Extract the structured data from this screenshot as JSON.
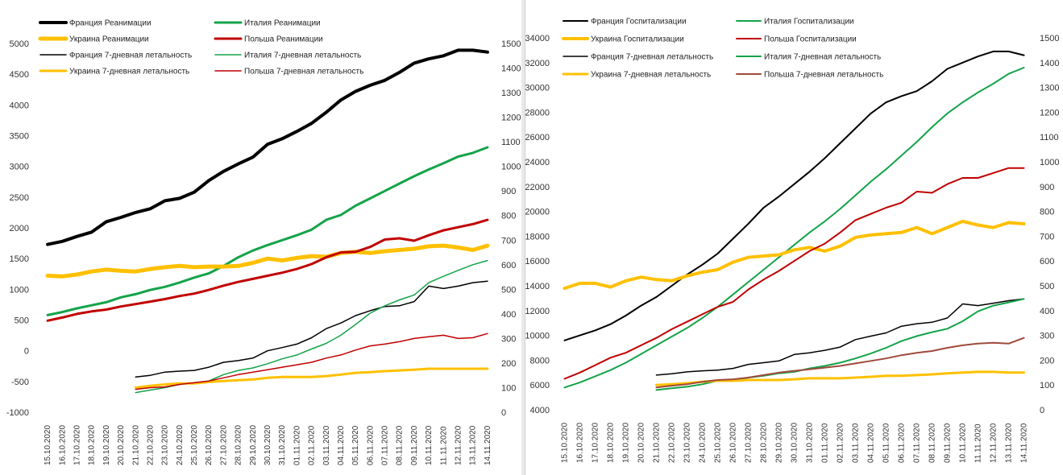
{
  "chart_data": [
    {
      "type": "line",
      "categories": [
        "15.10.2020",
        "16.10.2020",
        "17.10.2020",
        "18.10.2020",
        "19.10.2020",
        "20.10.2020",
        "21.10.2020",
        "22.10.2020",
        "23.10.2020",
        "24.10.2020",
        "25.10.2020",
        "26.10.2020",
        "27.10.2020",
        "28.10.2020",
        "29.10.2020",
        "30.10.2020",
        "31.10.2020",
        "01.11.2020",
        "02.11.2020",
        "03.11.2020",
        "04.11.2020",
        "05.11.2020",
        "06.11.2020",
        "07.11.2020",
        "08.11.2020",
        "09.11.2020",
        "10.11.2020",
        "11.11.2020",
        "12.11.2020",
        "13.11.2020",
        "14.11.2020"
      ],
      "y_left": {
        "min": -1000,
        "max": 5000,
        "step": 500,
        "ticks": [
          "-1000",
          "-500",
          "0",
          "500",
          "1000",
          "1500",
          "2000",
          "2500",
          "3000",
          "3500",
          "4000",
          "4500",
          "5000"
        ]
      },
      "y_right": {
        "min": 0,
        "max": 1500,
        "step": 100,
        "ticks": [
          "0",
          "100",
          "200",
          "300",
          "400",
          "500",
          "600",
          "700",
          "800",
          "900",
          "1000",
          "1100",
          "1200",
          "1300",
          "1400",
          "1500"
        ]
      },
      "grid": false,
      "legend": "top",
      "series": [
        {
          "name": "Франция Реанимации",
          "axis": "left",
          "color": "#000000",
          "width": 4,
          "values": [
            1730,
            1780,
            1860,
            1930,
            2100,
            2170,
            2250,
            2310,
            2440,
            2480,
            2580,
            2770,
            2920,
            3040,
            3150,
            3360,
            3450,
            3570,
            3700,
            3880,
            4080,
            4220,
            4320,
            4400,
            4530,
            4680,
            4750,
            4800,
            4890,
            4890,
            4860
          ]
        },
        {
          "name": "Италия Реанимации",
          "axis": "left",
          "color": "#14a349",
          "width": 3,
          "values": [
            580,
            630,
            690,
            740,
            790,
            870,
            920,
            990,
            1040,
            1110,
            1190,
            1260,
            1380,
            1520,
            1630,
            1720,
            1800,
            1880,
            1970,
            2130,
            2210,
            2360,
            2480,
            2600,
            2720,
            2840,
            2950,
            3050,
            3160,
            3220,
            3310
          ]
        },
        {
          "name": "Украина Реанимации",
          "axis": "left",
          "color": "#ffc000",
          "width": 5,
          "values": [
            1220,
            1210,
            1240,
            1290,
            1320,
            1300,
            1290,
            1330,
            1360,
            1380,
            1360,
            1370,
            1370,
            1380,
            1430,
            1500,
            1470,
            1510,
            1540,
            1530,
            1590,
            1610,
            1590,
            1620,
            1640,
            1660,
            1700,
            1710,
            1680,
            1640,
            1710
          ]
        },
        {
          "name": "Польша Реанимации",
          "axis": "left",
          "color": "#c00000",
          "width": 3,
          "values": [
            490,
            540,
            600,
            640,
            670,
            720,
            760,
            800,
            840,
            890,
            930,
            990,
            1060,
            1120,
            1170,
            1220,
            1270,
            1330,
            1410,
            1520,
            1600,
            1610,
            1690,
            1810,
            1830,
            1790,
            1880,
            1960,
            2010,
            2060,
            2130
          ]
        },
        {
          "name": "Франция 7-дневная летальность",
          "axis": "right",
          "color": "#000000",
          "width": 1.5,
          "values": [
            null,
            null,
            null,
            null,
            null,
            null,
            143,
            150,
            163,
            167,
            170,
            183,
            203,
            210,
            220,
            250,
            263,
            277,
            303,
            340,
            363,
            393,
            413,
            430,
            433,
            450,
            513,
            503,
            513,
            527,
            533
          ]
        },
        {
          "name": "Италия 7-дневная летальность",
          "axis": "right",
          "color": "#14a349",
          "width": 1.5,
          "values": [
            null,
            null,
            null,
            null,
            null,
            null,
            80,
            90,
            100,
            113,
            120,
            127,
            153,
            170,
            180,
            197,
            217,
            233,
            257,
            280,
            313,
            357,
            403,
            433,
            457,
            477,
            527,
            553,
            577,
            600,
            617
          ]
        },
        {
          "name": "Украина 7-дневная летальность",
          "axis": "right",
          "color": "#ffc000",
          "width": 3,
          "values": [
            null,
            null,
            null,
            null,
            null,
            null,
            100,
            107,
            113,
            117,
            117,
            123,
            127,
            130,
            133,
            140,
            143,
            143,
            143,
            147,
            153,
            160,
            163,
            167,
            170,
            173,
            177,
            177,
            177,
            177,
            177
          ]
        },
        {
          "name": "Польша 7-дневная летальность",
          "axis": "right",
          "color": "#c00000",
          "width": 1.5,
          "values": [
            null,
            null,
            null,
            null,
            null,
            null,
            93,
            100,
            103,
            113,
            120,
            127,
            140,
            153,
            163,
            173,
            183,
            193,
            203,
            220,
            233,
            253,
            270,
            277,
            287,
            300,
            307,
            313,
            300,
            303,
            320
          ]
        }
      ]
    },
    {
      "type": "line",
      "categories": [
        "15.10.2020",
        "16.10.2020",
        "17.10.2020",
        "18.10.2020",
        "19.10.2020",
        "20.10.2020",
        "21.10.2020",
        "22.10.2020",
        "23.10.2020",
        "24.10.2020",
        "25.10.2020",
        "26.10.2020",
        "27.10.2020",
        "28.10.2020",
        "29.10.2020",
        "30.10.2020",
        "31.10.2020",
        "01.11.2020",
        "02.11.2020",
        "03.11.2020",
        "04.11.2020",
        "05.11.2020",
        "06.11.2020",
        "07.11.2020",
        "08.11.2020",
        "09.11.2020",
        "10.11.2020",
        "11.11.2020",
        "12.11.2020",
        "13.11.2020",
        "14.11.2020"
      ],
      "y_left": {
        "min": 4000,
        "max": 34000,
        "step": 2000,
        "ticks": [
          "4000",
          "6000",
          "8000",
          "10000",
          "12000",
          "14000",
          "16000",
          "18000",
          "20000",
          "22000",
          "24000",
          "26000",
          "28000",
          "30000",
          "32000",
          "34000"
        ]
      },
      "y_right": {
        "min": 0,
        "max": 1500,
        "step": 100,
        "ticks": [
          "0",
          "100",
          "200",
          "300",
          "400",
          "500",
          "600",
          "700",
          "800",
          "900",
          "1000",
          "1100",
          "1200",
          "1300",
          "1400",
          "1500"
        ]
      },
      "grid": false,
      "legend": "top",
      "series": [
        {
          "name": "Франция Госпитализации",
          "axis": "left",
          "color": "#000000",
          "width": 2,
          "values": [
            9600,
            10000,
            10400,
            10900,
            11600,
            12400,
            13100,
            14000,
            14900,
            15700,
            16600,
            17800,
            19000,
            20300,
            21200,
            22200,
            23200,
            24300,
            25500,
            26700,
            27900,
            28800,
            29300,
            29700,
            30500,
            31500,
            32000,
            32500,
            32900,
            32900,
            32600
          ]
        },
        {
          "name": "Италия Госпитализации",
          "axis": "left",
          "color": "#14a349",
          "width": 2,
          "values": [
            5800,
            6200,
            6700,
            7200,
            7800,
            8500,
            9200,
            9900,
            10600,
            11400,
            12300,
            13300,
            14300,
            15300,
            16300,
            17300,
            18300,
            19200,
            20200,
            21300,
            22400,
            23400,
            24500,
            25600,
            26800,
            27900,
            28800,
            29600,
            30300,
            31100,
            31600
          ]
        },
        {
          "name": "Украина Госпитализации",
          "axis": "left",
          "color": "#ffc000",
          "width": 4,
          "values": [
            13800,
            14200,
            14200,
            13900,
            14400,
            14700,
            14500,
            14400,
            14800,
            15100,
            15300,
            15900,
            16300,
            16400,
            16500,
            16900,
            17100,
            16800,
            17200,
            17900,
            18100,
            18200,
            18300,
            18700,
            18200,
            18700,
            19200,
            18900,
            18700,
            19100,
            19000
          ]
        },
        {
          "name": "Польша Госпитализации",
          "axis": "left",
          "color": "#c00000",
          "width": 2,
          "values": [
            6500,
            7000,
            7600,
            8200,
            8600,
            9200,
            9800,
            10500,
            11100,
            11700,
            12300,
            12700,
            13700,
            14500,
            15200,
            16000,
            16800,
            17400,
            18300,
            19300,
            19800,
            20300,
            20700,
            21600,
            21500,
            22200,
            22700,
            22700,
            23100,
            23500,
            23500
          ]
        },
        {
          "name": "Франция 7-дневная летальность",
          "axis": "right",
          "color": "#000000",
          "width": 1.5,
          "values": [
            null,
            null,
            null,
            null,
            null,
            null,
            140,
            145,
            153,
            157,
            160,
            167,
            183,
            190,
            197,
            223,
            230,
            240,
            253,
            283,
            297,
            310,
            337,
            347,
            353,
            370,
            427,
            420,
            430,
            440,
            447
          ]
        },
        {
          "name": "Италия 7-дневная летальность",
          "axis": "right",
          "color": "#14a349",
          "width": 2,
          "values": [
            null,
            null,
            null,
            null,
            null,
            null,
            80,
            87,
            93,
            103,
            117,
            117,
            130,
            137,
            147,
            153,
            167,
            177,
            190,
            207,
            227,
            250,
            277,
            297,
            313,
            327,
            357,
            397,
            420,
            433,
            447
          ]
        },
        {
          "name": "Украина 7-дневная летальность",
          "axis": "right",
          "color": "#ffc000",
          "width": 3,
          "values": [
            null,
            null,
            null,
            null,
            null,
            null,
            100,
            103,
            107,
            113,
            117,
            117,
            120,
            120,
            120,
            123,
            127,
            127,
            127,
            130,
            133,
            137,
            137,
            140,
            143,
            147,
            150,
            153,
            153,
            150,
            150
          ]
        },
        {
          "name": "Польша 7-дневная летальность",
          "axis": "right",
          "color": "#9e4a3c",
          "width": 2,
          "values": [
            null,
            null,
            null,
            null,
            null,
            null,
            90,
            97,
            103,
            113,
            120,
            123,
            130,
            140,
            150,
            157,
            163,
            170,
            177,
            187,
            197,
            207,
            220,
            230,
            237,
            250,
            260,
            267,
            270,
            267,
            290
          ]
        }
      ]
    }
  ]
}
